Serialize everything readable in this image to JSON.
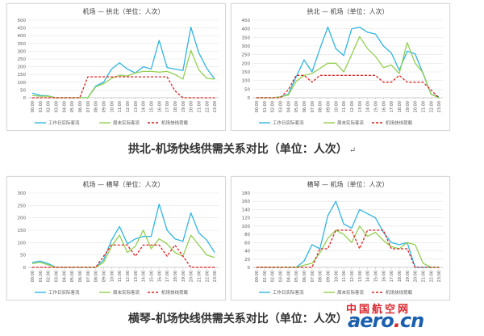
{
  "captions": {
    "top": "拱北-机场快线供需关系对比（单位：人次）",
    "bottom": "横琴-机场快线供需关系对比（单位：人次）",
    "tail": "↵"
  },
  "logo": {
    "cn": "中国航空网",
    "en_main": "aero",
    "en_dot": ".",
    "en_tld": "cn"
  },
  "colors": {
    "weekday": "#2fb5e3",
    "weekend": "#92d050",
    "capacity": "#e02020",
    "grid": "#e3e3e3",
    "axis": "#bfbfbf"
  },
  "chart_data": [
    {
      "type": "line",
      "title": "机场 — 拱北（单位：人次）",
      "categories": [
        "00:00",
        "01:00",
        "02:00",
        "03:00",
        "04:00",
        "05:00",
        "06:00",
        "07:00",
        "08:00",
        "09:00",
        "10:00",
        "11:00",
        "12:00",
        "13:00",
        "14:00",
        "15:00",
        "16:00",
        "17:00",
        "18:00",
        "19:00",
        "20:00",
        "21:00",
        "22:00",
        "23:00"
      ],
      "ylim": [
        0,
        500
      ],
      "yticks": [
        0,
        50,
        100,
        150,
        200,
        250,
        300,
        350,
        400,
        450,
        500
      ],
      "legend": "bottom",
      "series": [
        {
          "name": "工作日实际客流",
          "values": [
            30,
            15,
            12,
            0,
            0,
            0,
            0,
            0,
            75,
            100,
            185,
            225,
            185,
            160,
            200,
            185,
            370,
            195,
            185,
            175,
            455,
            290,
            190,
            120
          ]
        },
        {
          "name": "周末实际客流",
          "values": [
            15,
            10,
            10,
            0,
            0,
            0,
            0,
            0,
            70,
            90,
            125,
            145,
            140,
            160,
            170,
            170,
            165,
            170,
            150,
            120,
            305,
            180,
            125,
            120
          ]
        },
        {
          "name": "机场快线荷载",
          "values": [
            0,
            0,
            0,
            0,
            0,
            0,
            0,
            135,
            135,
            135,
            135,
            135,
            135,
            135,
            135,
            135,
            135,
            135,
            45,
            0,
            0,
            0,
            0,
            0
          ]
        }
      ]
    },
    {
      "type": "line",
      "title": "拱北 — 机场（单位：人次）",
      "categories": [
        "00:00",
        "01:00",
        "02:00",
        "03:00",
        "04:00",
        "05:00",
        "06:00",
        "07:00",
        "08:00",
        "09:00",
        "10:00",
        "11:00",
        "12:00",
        "13:00",
        "14:00",
        "15:00",
        "16:00",
        "17:00",
        "18:00",
        "19:00",
        "20:00",
        "21:00",
        "22:00",
        "23:00"
      ],
      "ylim": [
        0,
        450
      ],
      "yticks": [
        0,
        50,
        100,
        150,
        200,
        250,
        300,
        350,
        400,
        450
      ],
      "legend": "bottom",
      "series": [
        {
          "name": "工作日实际客流",
          "values": [
            0,
            0,
            0,
            5,
            20,
            120,
            220,
            150,
            285,
            410,
            285,
            245,
            400,
            410,
            380,
            370,
            300,
            260,
            160,
            270,
            255,
            140,
            20,
            5
          ]
        },
        {
          "name": "周末实际客流",
          "values": [
            0,
            0,
            0,
            5,
            15,
            95,
            130,
            140,
            170,
            200,
            200,
            150,
            250,
            355,
            285,
            240,
            175,
            190,
            140,
            320,
            200,
            145,
            20,
            0
          ]
        },
        {
          "name": "机场快线荷载",
          "values": [
            0,
            0,
            0,
            0,
            45,
            130,
            130,
            90,
            130,
            130,
            130,
            130,
            130,
            130,
            130,
            130,
            90,
            90,
            130,
            90,
            90,
            90,
            45,
            0
          ]
        }
      ]
    },
    {
      "type": "line",
      "title": "机场 — 横琴（单位：人次）",
      "categories": [
        "00:00",
        "01:00",
        "02:00",
        "03:00",
        "04:00",
        "05:00",
        "06:00",
        "07:00",
        "08:00",
        "09:00",
        "10:00",
        "11:00",
        "12:00",
        "13:00",
        "14:00",
        "15:00",
        "16:00",
        "17:00",
        "18:00",
        "19:00",
        "20:00",
        "21:00",
        "22:00",
        "23:00"
      ],
      "ylim": [
        0,
        300
      ],
      "yticks": [
        0,
        50,
        100,
        150,
        200,
        250,
        300
      ],
      "legend": "bottom",
      "series": [
        {
          "name": "工作日实际客流",
          "values": [
            20,
            25,
            15,
            0,
            0,
            0,
            0,
            0,
            0,
            30,
            110,
            165,
            95,
            115,
            125,
            125,
            255,
            150,
            115,
            105,
            220,
            140,
            110,
            60
          ]
        },
        {
          "name": "周末实际客流",
          "values": [
            15,
            20,
            10,
            0,
            0,
            0,
            0,
            0,
            0,
            20,
            85,
            130,
            60,
            85,
            150,
            75,
            115,
            95,
            60,
            45,
            130,
            90,
            50,
            40
          ]
        },
        {
          "name": "机场快线荷载",
          "values": [
            0,
            0,
            0,
            0,
            0,
            0,
            0,
            0,
            0,
            45,
            90,
            90,
            90,
            45,
            90,
            90,
            90,
            45,
            90,
            45,
            0,
            0,
            0,
            0
          ]
        }
      ]
    },
    {
      "type": "line",
      "title": "横琴 — 机场（单位：人次）",
      "categories": [
        "00:00",
        "01:00",
        "02:00",
        "03:00",
        "04:00",
        "05:00",
        "06:00",
        "07:00",
        "08:00",
        "09:00",
        "10:00",
        "11:00",
        "12:00",
        "13:00",
        "14:00",
        "15:00",
        "16:00",
        "17:00",
        "18:00",
        "19:00",
        "20:00",
        "21:00",
        "22:00",
        "23:00"
      ],
      "ylim": [
        0,
        180
      ],
      "yticks": [
        0,
        20,
        40,
        60,
        80,
        100,
        120,
        140,
        160,
        180
      ],
      "legend": "bottom",
      "series": [
        {
          "name": "工作日实际客流",
          "values": [
            0,
            0,
            0,
            0,
            0,
            0,
            15,
            55,
            45,
            125,
            160,
            105,
            95,
            140,
            130,
            120,
            85,
            60,
            55,
            60,
            0,
            0,
            0,
            0
          ]
        },
        {
          "name": "周末实际客流",
          "values": [
            0,
            0,
            0,
            0,
            0,
            0,
            5,
            10,
            35,
            70,
            90,
            80,
            60,
            100,
            75,
            85,
            65,
            50,
            45,
            60,
            55,
            10,
            0,
            0
          ]
        },
        {
          "name": "机场快线荷载",
          "values": [
            0,
            0,
            0,
            0,
            0,
            0,
            0,
            0,
            45,
            45,
            90,
            90,
            90,
            45,
            90,
            90,
            90,
            45,
            45,
            45,
            0,
            0,
            0,
            0
          ]
        }
      ]
    }
  ]
}
